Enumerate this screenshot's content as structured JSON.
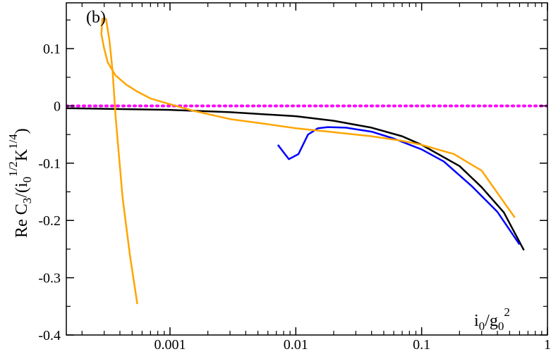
{
  "chart_data": {
    "type": "line",
    "panel_label": "(b)",
    "xlabel_parts": {
      "base": "i",
      "sub": "0",
      "mid": "/g",
      "sub2": "0",
      "sup": "2"
    },
    "ylabel_parts": {
      "pre": "Re C",
      "sub1": "3",
      "mid1": "/(i",
      "sub2": "0",
      "sup1": "1/2",
      "mid2": "K",
      "sup2": "1/4",
      "post": ")"
    },
    "x_scale": "log",
    "xlim": [
      0.00015,
      1
    ],
    "ylim": [
      -0.4,
      0.18
    ],
    "x_ticks": [
      {
        "value": 0.001,
        "label": "0.001"
      },
      {
        "value": 0.01,
        "label": "0.01"
      },
      {
        "value": 0.1,
        "label": "0.1"
      },
      {
        "value": 1,
        "label": "1"
      }
    ],
    "y_ticks": [
      {
        "value": 0.1,
        "label": "0.1"
      },
      {
        "value": 0,
        "label": "0"
      },
      {
        "value": -0.1,
        "label": "-0.1"
      },
      {
        "value": -0.2,
        "label": "-0.2"
      },
      {
        "value": -0.3,
        "label": "-0.3"
      },
      {
        "value": -0.4,
        "label": "-0.4"
      }
    ],
    "series": [
      {
        "color": "#ff00ff",
        "style": "dotted",
        "points": [
          [
            0.00015,
            0
          ],
          [
            1,
            0
          ]
        ]
      },
      {
        "color": "#000000",
        "style": "solid",
        "points": [
          [
            0.00015,
            -0.004
          ],
          [
            0.001,
            -0.007
          ],
          [
            0.003,
            -0.011
          ],
          [
            0.01,
            -0.018
          ],
          [
            0.02,
            -0.026
          ],
          [
            0.04,
            -0.038
          ],
          [
            0.07,
            -0.053
          ],
          [
            0.1,
            -0.068
          ],
          [
            0.2,
            -0.105
          ],
          [
            0.3,
            -0.142
          ],
          [
            0.45,
            -0.186
          ],
          [
            0.65,
            -0.252
          ]
        ]
      },
      {
        "color": "#0000ff",
        "style": "solid",
        "points": [
          [
            0.0072,
            -0.068
          ],
          [
            0.0088,
            -0.093
          ],
          [
            0.0105,
            -0.084
          ],
          [
            0.0125,
            -0.05
          ],
          [
            0.015,
            -0.039
          ],
          [
            0.018,
            -0.037
          ],
          [
            0.025,
            -0.038
          ],
          [
            0.04,
            -0.045
          ],
          [
            0.06,
            -0.057
          ],
          [
            0.1,
            -0.076
          ],
          [
            0.15,
            -0.097
          ],
          [
            0.25,
            -0.14
          ],
          [
            0.4,
            -0.185
          ],
          [
            0.6,
            -0.242
          ]
        ]
      },
      {
        "color": "#ffa500",
        "style": "solid",
        "points": [
          [
            0.00055,
            -0.346
          ],
          [
            0.00048,
            -0.26
          ],
          [
            0.00042,
            -0.16
          ],
          [
            0.00037,
            -0.02
          ],
          [
            0.00035,
            0.06
          ],
          [
            0.00033,
            0.115
          ],
          [
            0.00031,
            0.152
          ],
          [
            0.00029,
            0.152
          ],
          [
            0.000285,
            0.125
          ],
          [
            0.0003,
            0.1
          ],
          [
            0.00032,
            0.076
          ],
          [
            0.00037,
            0.053
          ],
          [
            0.00045,
            0.037
          ],
          [
            0.00055,
            0.025
          ],
          [
            0.0007,
            0.013
          ],
          [
            0.001,
            0.003
          ],
          [
            0.0015,
            -0.008
          ],
          [
            0.003,
            -0.023
          ],
          [
            0.006,
            -0.032
          ],
          [
            0.01,
            -0.039
          ],
          [
            0.02,
            -0.046
          ],
          [
            0.04,
            -0.053
          ],
          [
            0.07,
            -0.061
          ],
          [
            0.1,
            -0.068
          ],
          [
            0.18,
            -0.084
          ],
          [
            0.3,
            -0.113
          ],
          [
            0.55,
            -0.195
          ]
        ]
      }
    ]
  }
}
